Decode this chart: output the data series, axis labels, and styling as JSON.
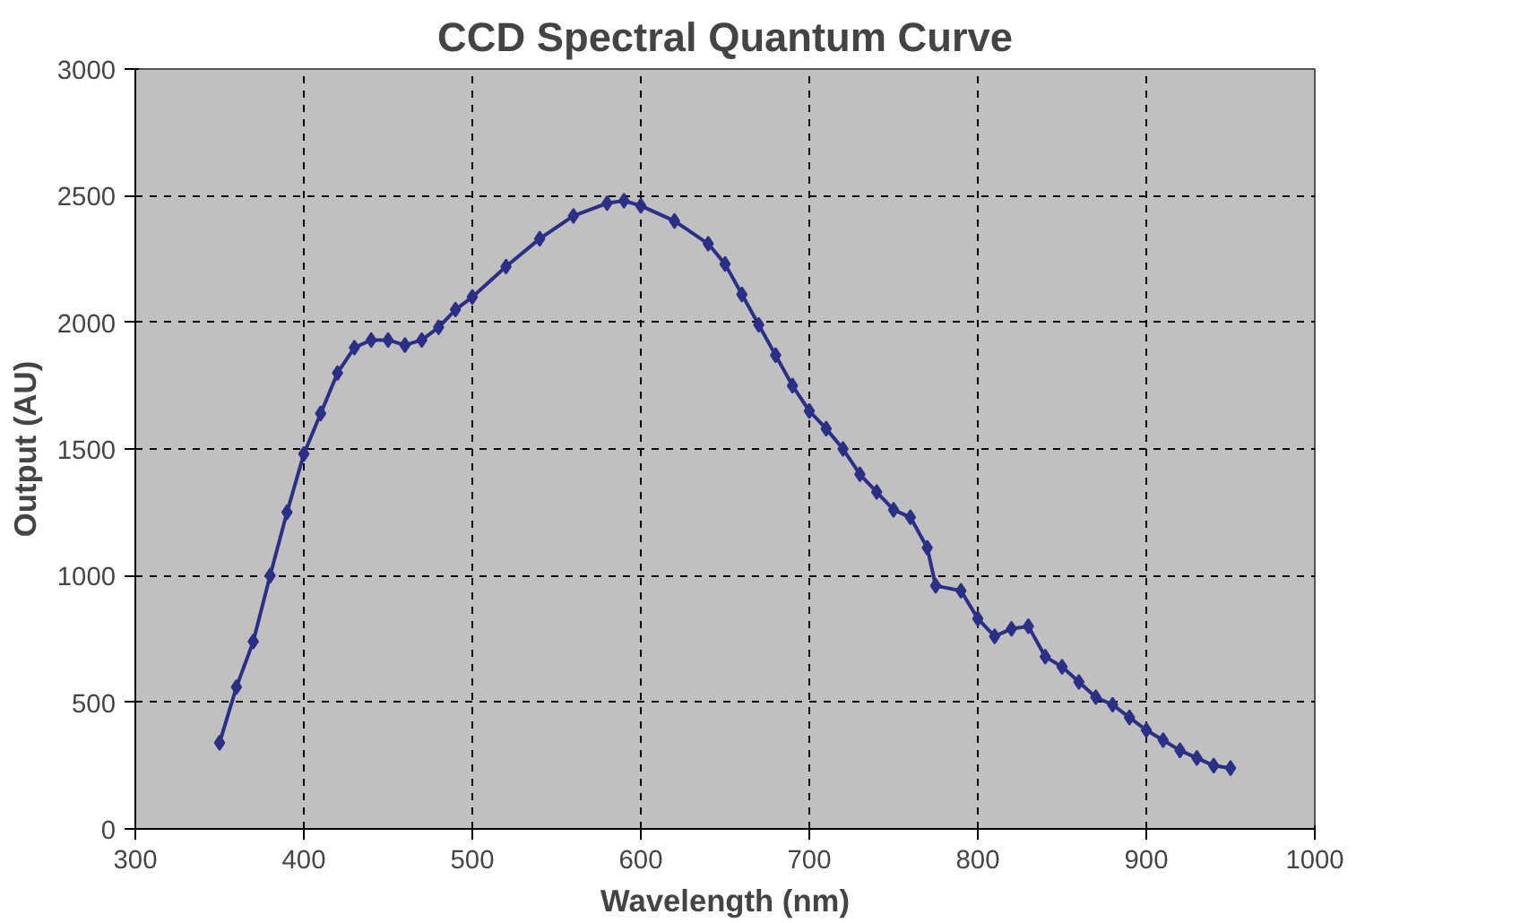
{
  "chart_data": {
    "type": "line",
    "title": "CCD Spectral Quantum Curve",
    "xlabel": "Wavelength (nm)",
    "ylabel": "Output (AU)",
    "x": [
      350,
      360,
      370,
      380,
      390,
      400,
      410,
      420,
      430,
      440,
      450,
      460,
      470,
      480,
      490,
      500,
      520,
      540,
      560,
      580,
      590,
      600,
      620,
      640,
      650,
      660,
      670,
      680,
      690,
      700,
      710,
      720,
      730,
      740,
      750,
      760,
      770,
      775,
      790,
      800,
      810,
      820,
      830,
      840,
      850,
      860,
      870,
      880,
      890,
      900,
      910,
      920,
      930,
      940,
      950
    ],
    "series": [
      {
        "color": "#2b2f86",
        "values": [
          340,
          560,
          740,
          1000,
          1250,
          1480,
          1640,
          1800,
          1900,
          1930,
          1930,
          1910,
          1930,
          1980,
          2050,
          2100,
          2220,
          2330,
          2420,
          2470,
          2480,
          2460,
          2400,
          2310,
          2230,
          2110,
          1990,
          1870,
          1750,
          1650,
          1580,
          1500,
          1400,
          1330,
          1260,
          1230,
          1110,
          960,
          940,
          830,
          760,
          790,
          800,
          680,
          640,
          580,
          520,
          490,
          440,
          390,
          350,
          310,
          280,
          250,
          240
        ]
      }
    ],
    "xlim": [
      300,
      1000
    ],
    "ylim": [
      0,
      3000
    ],
    "xticks": [
      300,
      400,
      500,
      600,
      700,
      800,
      900,
      1000
    ],
    "yticks": [
      0,
      500,
      1000,
      1500,
      2000,
      2500,
      3000
    ],
    "grid": true,
    "marker": "diamond",
    "line_style": "solid"
  }
}
